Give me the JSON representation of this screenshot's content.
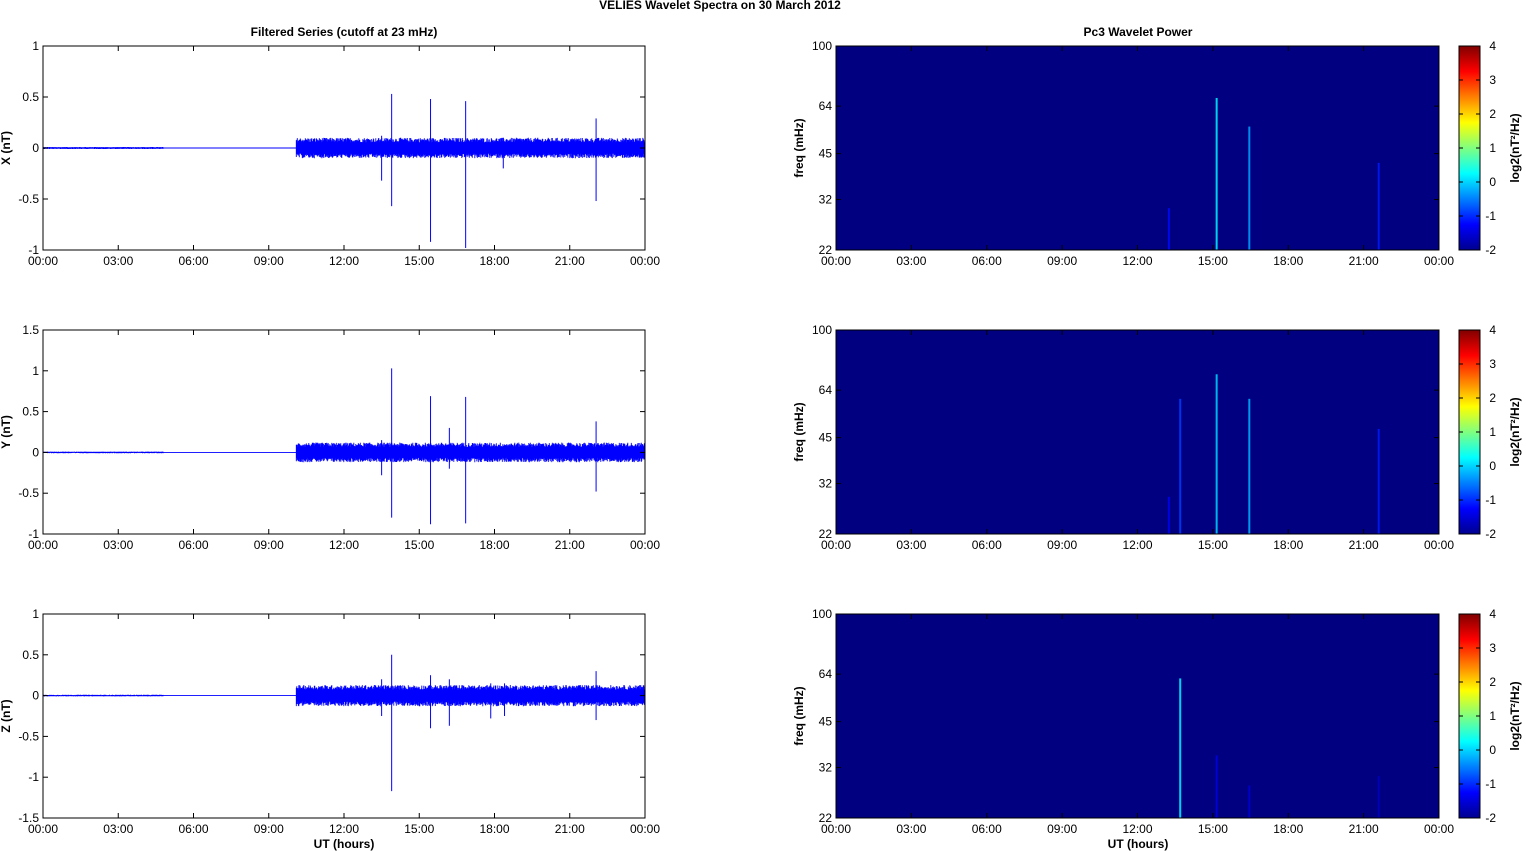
{
  "figure": {
    "title": "VELIES Wavelet Spectra on 30 March     2012",
    "left_title": "Filtered Series (cutoff at 23 mHz)",
    "right_title": "Pc3 Wavelet Power",
    "xlabel": "UT (hours)"
  },
  "colors": {
    "trace": "#0000ff",
    "background_power": "#00008f",
    "axis": "#000000"
  },
  "chart_data": [
    {
      "type": "line",
      "component": "X",
      "ylabel": "X (nT)",
      "xlim": [
        0,
        24
      ],
      "ylim": [
        -1,
        1
      ],
      "x_ticks": [
        0,
        3,
        6,
        9,
        12,
        15,
        18,
        21,
        24
      ],
      "x_tick_labels": [
        "00:00",
        "03:00",
        "06:00",
        "09:00",
        "12:00",
        "15:00",
        "18:00",
        "21:00",
        "00:00"
      ],
      "y_ticks": [
        -1,
        -0.5,
        0,
        0.5,
        1
      ],
      "y_tick_labels": [
        "-1",
        "-0.5",
        "0",
        "0.5",
        "1"
      ],
      "segments": [
        {
          "x_start": 0.0,
          "x_end": 4.8,
          "amplitude": 0.01
        },
        {
          "x_start": 4.8,
          "x_end": 10.1,
          "amplitude": 0.0
        },
        {
          "x_start": 10.1,
          "x_end": 24.0,
          "amplitude": 0.1
        }
      ],
      "spikes": [
        {
          "x": 13.5,
          "min": -0.32,
          "max": 0.12
        },
        {
          "x": 13.9,
          "min": -0.57,
          "max": 0.53
        },
        {
          "x": 15.45,
          "min": -0.92,
          "max": 0.48
        },
        {
          "x": 16.85,
          "min": -0.98,
          "max": 0.46
        },
        {
          "x": 18.35,
          "min": -0.2,
          "max": 0.1
        },
        {
          "x": 22.05,
          "min": -0.52,
          "max": 0.29
        }
      ]
    },
    {
      "type": "line",
      "component": "Y",
      "ylabel": "Y (nT)",
      "xlim": [
        0,
        24
      ],
      "ylim": [
        -1,
        1.5
      ],
      "x_ticks": [
        0,
        3,
        6,
        9,
        12,
        15,
        18,
        21,
        24
      ],
      "x_tick_labels": [
        "00:00",
        "03:00",
        "06:00",
        "09:00",
        "12:00",
        "15:00",
        "18:00",
        "21:00",
        "00:00"
      ],
      "y_ticks": [
        -1,
        -0.5,
        0,
        0.5,
        1,
        1.5
      ],
      "y_tick_labels": [
        "-1",
        "-0.5",
        "0",
        "0.5",
        "1",
        "1.5"
      ],
      "segments": [
        {
          "x_start": 0.0,
          "x_end": 4.8,
          "amplitude": 0.01
        },
        {
          "x_start": 4.8,
          "x_end": 10.1,
          "amplitude": 0.0
        },
        {
          "x_start": 10.1,
          "x_end": 24.0,
          "amplitude": 0.12
        }
      ],
      "spikes": [
        {
          "x": 13.5,
          "min": -0.28,
          "max": 0.15
        },
        {
          "x": 13.9,
          "min": -0.8,
          "max": 1.03
        },
        {
          "x": 15.45,
          "min": -0.88,
          "max": 0.69
        },
        {
          "x": 16.2,
          "min": -0.2,
          "max": 0.3
        },
        {
          "x": 16.85,
          "min": -0.87,
          "max": 0.68
        },
        {
          "x": 22.05,
          "min": -0.48,
          "max": 0.38
        }
      ]
    },
    {
      "type": "line",
      "component": "Z",
      "ylabel": "Z (nT)",
      "xlim": [
        0,
        24
      ],
      "ylim": [
        -1.5,
        1
      ],
      "x_ticks": [
        0,
        3,
        6,
        9,
        12,
        15,
        18,
        21,
        24
      ],
      "x_tick_labels": [
        "00:00",
        "03:00",
        "06:00",
        "09:00",
        "12:00",
        "15:00",
        "18:00",
        "21:00",
        "00:00"
      ],
      "y_ticks": [
        -1.5,
        -1,
        -0.5,
        0,
        0.5,
        1
      ],
      "y_tick_labels": [
        "-1.5",
        "-1",
        "-0.5",
        "0",
        "0.5",
        "1"
      ],
      "segments": [
        {
          "x_start": 0.0,
          "x_end": 4.8,
          "amplitude": 0.01
        },
        {
          "x_start": 4.8,
          "x_end": 10.1,
          "amplitude": 0.0
        },
        {
          "x_start": 10.1,
          "x_end": 24.0,
          "amplitude": 0.13
        }
      ],
      "spikes": [
        {
          "x": 13.5,
          "min": -0.25,
          "max": 0.2
        },
        {
          "x": 13.9,
          "min": -1.17,
          "max": 0.5
        },
        {
          "x": 15.45,
          "min": -0.4,
          "max": 0.25
        },
        {
          "x": 16.2,
          "min": -0.37,
          "max": 0.2
        },
        {
          "x": 17.85,
          "min": -0.28,
          "max": 0.15
        },
        {
          "x": 18.4,
          "min": -0.25,
          "max": 0.15
        },
        {
          "x": 22.05,
          "min": -0.3,
          "max": 0.3
        }
      ]
    },
    {
      "type": "heatmap",
      "component": "X",
      "ylabel": "freq (mHz)",
      "colorbar_label": "log2(nT²/Hz)",
      "xlim": [
        0,
        24
      ],
      "ylim": [
        22,
        100
      ],
      "y_scale": "log",
      "clim": [
        -2,
        4
      ],
      "x_ticks": [
        0,
        3,
        6,
        9,
        12,
        15,
        18,
        21,
        24
      ],
      "x_tick_labels": [
        "00:00",
        "03:00",
        "06:00",
        "09:00",
        "12:00",
        "15:00",
        "18:00",
        "21:00",
        "00:00"
      ],
      "y_ticks": [
        22,
        32,
        45,
        64,
        100
      ],
      "y_tick_labels": [
        "22",
        "32",
        "45",
        "64",
        "100"
      ],
      "colorbar_ticks": [
        -2,
        -1,
        0,
        1,
        2,
        3,
        4
      ],
      "background_level": -2,
      "streaks": [
        {
          "x": 13.25,
          "f_max": 30,
          "level": -1.2
        },
        {
          "x": 15.15,
          "f_max": 68,
          "level": 0.2
        },
        {
          "x": 16.45,
          "f_max": 55,
          "level": -0.3
        },
        {
          "x": 21.6,
          "f_max": 42,
          "level": -1.1
        }
      ]
    },
    {
      "type": "heatmap",
      "component": "Y",
      "ylabel": "freq (mHz)",
      "colorbar_label": "log2(nT²/Hz)",
      "xlim": [
        0,
        24
      ],
      "ylim": [
        22,
        100
      ],
      "y_scale": "log",
      "clim": [
        -2,
        4
      ],
      "x_ticks": [
        0,
        3,
        6,
        9,
        12,
        15,
        18,
        21,
        24
      ],
      "x_tick_labels": [
        "00:00",
        "03:00",
        "06:00",
        "09:00",
        "12:00",
        "15:00",
        "18:00",
        "21:00",
        "00:00"
      ],
      "y_ticks": [
        22,
        32,
        45,
        64,
        100
      ],
      "y_tick_labels": [
        "22",
        "32",
        "45",
        "64",
        "100"
      ],
      "colorbar_ticks": [
        -2,
        -1,
        0,
        1,
        2,
        3,
        4
      ],
      "background_level": -2,
      "streaks": [
        {
          "x": 13.25,
          "f_max": 29,
          "level": -1.3
        },
        {
          "x": 13.7,
          "f_max": 60,
          "level": -0.9
        },
        {
          "x": 15.15,
          "f_max": 72,
          "level": 0.0
        },
        {
          "x": 16.45,
          "f_max": 60,
          "level": -0.2
        },
        {
          "x": 21.6,
          "f_max": 48,
          "level": -1.1
        }
      ]
    },
    {
      "type": "heatmap",
      "component": "Z",
      "ylabel": "freq (mHz)",
      "colorbar_label": "log2(nT²/Hz)",
      "xlim": [
        0,
        24
      ],
      "ylim": [
        22,
        100
      ],
      "y_scale": "log",
      "clim": [
        -2,
        4
      ],
      "x_ticks": [
        0,
        3,
        6,
        9,
        12,
        15,
        18,
        21,
        24
      ],
      "x_tick_labels": [
        "00:00",
        "03:00",
        "06:00",
        "09:00",
        "12:00",
        "15:00",
        "18:00",
        "21:00",
        "00:00"
      ],
      "y_ticks": [
        22,
        32,
        45,
        64,
        100
      ],
      "y_tick_labels": [
        "22",
        "32",
        "45",
        "64",
        "100"
      ],
      "colorbar_ticks": [
        -2,
        -1,
        0,
        1,
        2,
        3,
        4
      ],
      "background_level": -2,
      "streaks": [
        {
          "x": 13.7,
          "f_max": 62,
          "level": 0.2
        },
        {
          "x": 15.15,
          "f_max": 35,
          "level": -1.4
        },
        {
          "x": 16.45,
          "f_max": 28,
          "level": -1.5
        },
        {
          "x": 21.6,
          "f_max": 30,
          "level": -1.6
        }
      ]
    }
  ]
}
